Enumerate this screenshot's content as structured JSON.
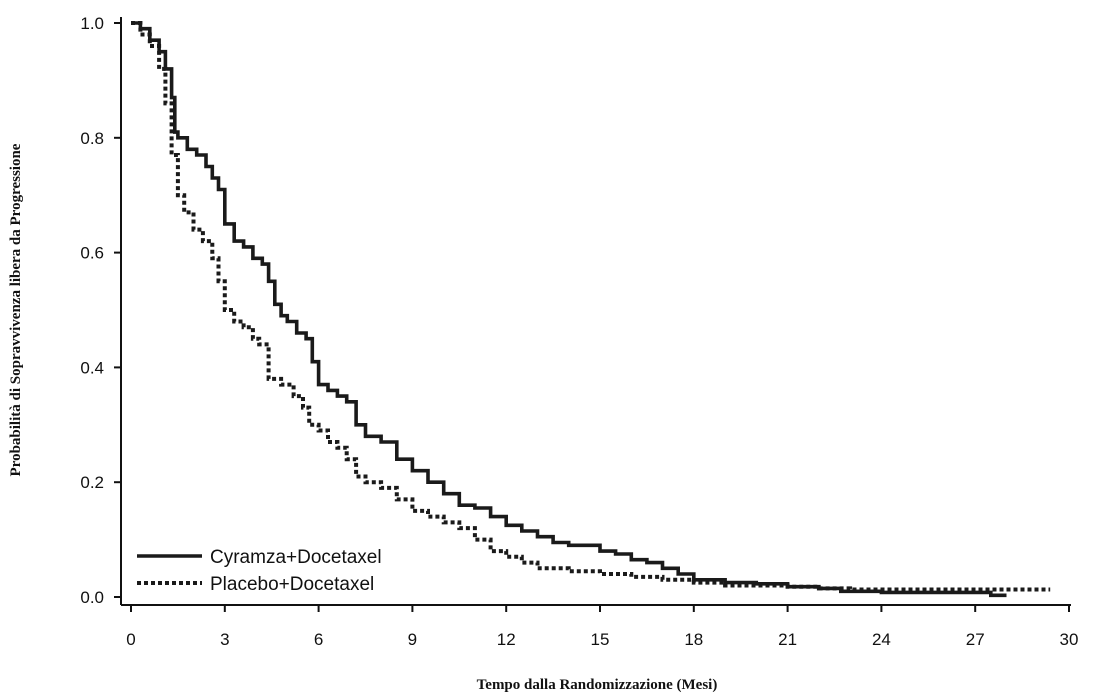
{
  "chart_data": {
    "type": "line",
    "title": "",
    "xlabel": "Tempo dalla Randomizzazione (Mesi)",
    "ylabel": "Probabilità di Sopravvivenza libera da Progressione",
    "xlim": [
      0,
      30
    ],
    "ylim": [
      0,
      1
    ],
    "xticks": [
      0,
      3,
      6,
      9,
      12,
      15,
      18,
      21,
      24,
      27,
      30
    ],
    "yticks": [
      0.0,
      0.2,
      0.4,
      0.6,
      0.8,
      1.0
    ],
    "xtick_labels": [
      "0",
      "3",
      "6",
      "9",
      "12",
      "15",
      "18",
      "21",
      "24",
      "27",
      "30"
    ],
    "ytick_labels": [
      "0.0",
      "0.2",
      "0.4",
      "0.6",
      "0.8",
      "1.0"
    ],
    "grid": false,
    "legend_position": "bottom-left",
    "series": [
      {
        "name": "Cyramza+Docetaxel",
        "style": "solid",
        "color": "#1a1a1a",
        "x": [
          0,
          0.3,
          0.6,
          0.9,
          1.1,
          1.3,
          1.4,
          1.5,
          1.8,
          2.1,
          2.4,
          2.6,
          2.8,
          3.0,
          3.3,
          3.6,
          3.9,
          4.2,
          4.4,
          4.6,
          4.8,
          5.0,
          5.3,
          5.6,
          5.8,
          6.0,
          6.3,
          6.6,
          6.9,
          7.2,
          7.5,
          8.0,
          8.5,
          9.0,
          9.5,
          10.0,
          10.5,
          11.0,
          11.5,
          12.0,
          12.5,
          13.0,
          13.5,
          14.0,
          15.0,
          15.5,
          16.0,
          16.5,
          17.0,
          17.5,
          18.0,
          19.0,
          20.0,
          21.0,
          22.0,
          22.7,
          24.0,
          25.0,
          26.0,
          27.0,
          27.5,
          28.0
        ],
        "y": [
          1.0,
          0.99,
          0.97,
          0.95,
          0.92,
          0.87,
          0.81,
          0.8,
          0.78,
          0.77,
          0.75,
          0.73,
          0.71,
          0.65,
          0.62,
          0.61,
          0.59,
          0.58,
          0.55,
          0.51,
          0.49,
          0.48,
          0.46,
          0.45,
          0.41,
          0.37,
          0.36,
          0.35,
          0.34,
          0.3,
          0.28,
          0.27,
          0.24,
          0.22,
          0.2,
          0.18,
          0.16,
          0.155,
          0.14,
          0.125,
          0.115,
          0.105,
          0.095,
          0.09,
          0.08,
          0.075,
          0.065,
          0.06,
          0.05,
          0.04,
          0.03,
          0.025,
          0.023,
          0.018,
          0.015,
          0.01,
          0.008,
          0.008,
          0.008,
          0.008,
          0.003,
          0.003
        ]
      },
      {
        "name": "Placebo+Docetaxel",
        "style": "dotted",
        "color": "#1a1a1a",
        "x": [
          0,
          0.3,
          0.6,
          0.9,
          1.1,
          1.3,
          1.5,
          1.7,
          2.0,
          2.3,
          2.6,
          2.8,
          3.0,
          3.3,
          3.6,
          3.9,
          4.1,
          4.4,
          4.8,
          5.2,
          5.5,
          5.7,
          6.0,
          6.3,
          6.6,
          6.9,
          7.2,
          7.5,
          8.0,
          8.5,
          9.0,
          9.5,
          10.0,
          10.5,
          11.0,
          11.5,
          12.0,
          12.5,
          13.0,
          14.0,
          15.0,
          16.0,
          17.0,
          18.0,
          19.0,
          20.0,
          21.0,
          22.0,
          23.0,
          24.0,
          25.0,
          26.0,
          27.0,
          28.0,
          29.4
        ],
        "y": [
          1.0,
          0.98,
          0.96,
          0.92,
          0.86,
          0.77,
          0.7,
          0.67,
          0.64,
          0.62,
          0.59,
          0.55,
          0.5,
          0.48,
          0.47,
          0.45,
          0.44,
          0.38,
          0.37,
          0.35,
          0.33,
          0.3,
          0.29,
          0.27,
          0.26,
          0.24,
          0.21,
          0.2,
          0.19,
          0.17,
          0.15,
          0.14,
          0.13,
          0.12,
          0.1,
          0.08,
          0.07,
          0.06,
          0.05,
          0.045,
          0.04,
          0.035,
          0.03,
          0.025,
          0.02,
          0.02,
          0.018,
          0.015,
          0.013,
          0.013,
          0.013,
          0.013,
          0.013,
          0.013,
          0.013
        ]
      }
    ]
  }
}
